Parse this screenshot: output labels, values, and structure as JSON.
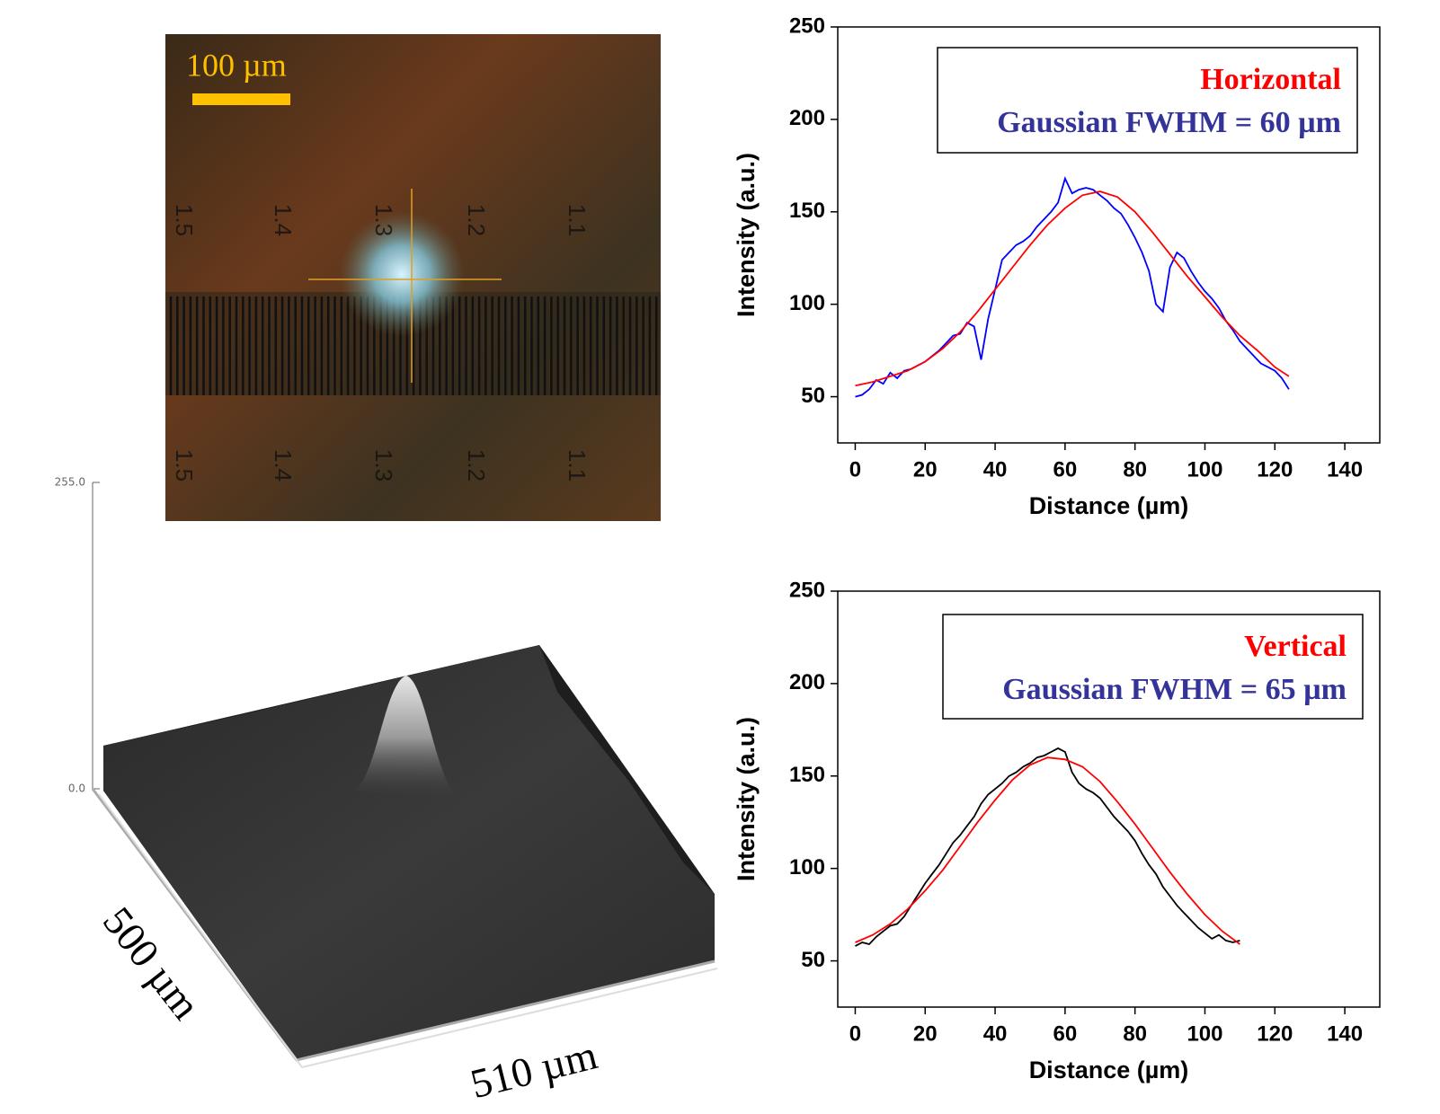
{
  "micrograph": {
    "scale_label": "100 µm",
    "ruler_labels": [
      "1.5",
      "1.4",
      "1.3",
      "1.2",
      "1.1"
    ]
  },
  "surface_plot": {
    "z_max_label": "255.0",
    "z_min_label": "0.0",
    "y_label": "500 µm",
    "x_label": "510 µm"
  },
  "chart_data": [
    {
      "type": "line",
      "xlabel": "Distance (µm)",
      "ylabel": "Intensity (a.u.)",
      "annotations": [
        {
          "text": "Horizontal",
          "color": "#ff0000"
        },
        {
          "text": "Gaussian FWHM = 60 µm",
          "color": "#333399"
        }
      ],
      "xlim": [
        -5,
        150
      ],
      "xticks": [
        0,
        20,
        40,
        60,
        80,
        100,
        120,
        140
      ],
      "ylim": [
        25,
        250
      ],
      "yticks": [
        50,
        100,
        150,
        200,
        250
      ],
      "series": [
        {
          "color": "#0000ff",
          "x": [
            0,
            2,
            4,
            6,
            8,
            10,
            12,
            14,
            16,
            18,
            20,
            22,
            24,
            26,
            28,
            30,
            32,
            34,
            36,
            38,
            40,
            42,
            44,
            46,
            48,
            50,
            52,
            54,
            56,
            58,
            60,
            62,
            64,
            66,
            68,
            70,
            72,
            74,
            76,
            78,
            80,
            82,
            84,
            86,
            88,
            90,
            92,
            94,
            96,
            98,
            100,
            102,
            104,
            106,
            108,
            110,
            112,
            114,
            116,
            118,
            120,
            122,
            124
          ],
          "values": [
            50,
            51,
            54,
            59,
            57,
            63,
            60,
            64,
            65,
            67,
            69,
            72,
            75,
            79,
            83,
            84,
            90,
            88,
            70,
            92,
            108,
            124,
            128,
            132,
            134,
            137,
            142,
            146,
            150,
            155,
            168,
            160,
            162,
            163,
            162,
            159,
            156,
            152,
            149,
            143,
            136,
            128,
            118,
            100,
            96,
            120,
            128,
            125,
            118,
            112,
            107,
            103,
            98,
            91,
            86,
            80,
            76,
            72,
            68,
            66,
            64,
            60,
            54
          ]
        },
        {
          "color": "#ff0000",
          "x": [
            0,
            5,
            10,
            15,
            20,
            25,
            30,
            35,
            40,
            45,
            50,
            55,
            60,
            65,
            70,
            75,
            80,
            85,
            90,
            95,
            100,
            105,
            110,
            115,
            120,
            124
          ],
          "values": [
            56,
            58,
            61,
            64,
            69,
            76,
            85,
            96,
            108,
            120,
            132,
            143,
            152,
            159,
            161,
            158,
            150,
            139,
            127,
            115,
            104,
            93,
            83,
            75,
            66,
            61
          ]
        }
      ]
    },
    {
      "type": "line",
      "xlabel": "Distance (µm)",
      "ylabel": "Intensity (a.u.)",
      "annotations": [
        {
          "text": "Vertical",
          "color": "#ff0000"
        },
        {
          "text": "Gaussian FWHM = 65 µm",
          "color": "#333399"
        }
      ],
      "xlim": [
        -5,
        150
      ],
      "xticks": [
        0,
        20,
        40,
        60,
        80,
        100,
        120,
        140
      ],
      "ylim": [
        25,
        250
      ],
      "yticks": [
        50,
        100,
        150,
        200,
        250
      ],
      "series": [
        {
          "color": "#000000",
          "x": [
            0,
            2,
            4,
            6,
            8,
            10,
            12,
            14,
            16,
            18,
            20,
            22,
            24,
            26,
            28,
            30,
            32,
            34,
            36,
            38,
            40,
            42,
            44,
            46,
            48,
            50,
            52,
            54,
            56,
            58,
            60,
            62,
            64,
            66,
            68,
            70,
            72,
            74,
            76,
            78,
            80,
            82,
            84,
            86,
            88,
            90,
            92,
            94,
            96,
            98,
            100,
            102,
            104,
            106,
            108,
            110
          ],
          "values": [
            58,
            60,
            59,
            63,
            66,
            69,
            70,
            74,
            80,
            86,
            92,
            97,
            102,
            108,
            114,
            118,
            123,
            128,
            135,
            140,
            143,
            146,
            150,
            152,
            155,
            157,
            160,
            161,
            163,
            165,
            163,
            152,
            146,
            143,
            141,
            138,
            133,
            128,
            124,
            120,
            115,
            108,
            102,
            97,
            90,
            85,
            80,
            76,
            72,
            68,
            65,
            62,
            64,
            61,
            60,
            61
          ]
        },
        {
          "color": "#ff0000",
          "x": [
            0,
            5,
            10,
            15,
            20,
            25,
            30,
            35,
            40,
            45,
            50,
            55,
            60,
            65,
            70,
            75,
            80,
            85,
            90,
            95,
            100,
            105,
            110
          ],
          "values": [
            60,
            64,
            70,
            78,
            88,
            99,
            112,
            125,
            137,
            148,
            156,
            160,
            159,
            155,
            147,
            136,
            124,
            111,
            98,
            86,
            75,
            66,
            59
          ]
        }
      ]
    }
  ]
}
